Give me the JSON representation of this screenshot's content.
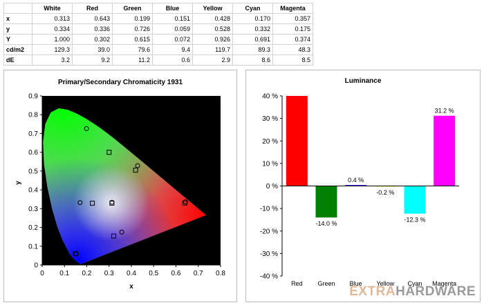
{
  "table": {
    "columns": [
      "White",
      "Red",
      "Green",
      "Blue",
      "Yellow",
      "Cyan",
      "Magenta"
    ],
    "rows": [
      {
        "label": "x",
        "values": [
          "0.313",
          "0.643",
          "0.199",
          "0.151",
          "0.428",
          "0.170",
          "0.357"
        ]
      },
      {
        "label": "y",
        "values": [
          "0.334",
          "0.336",
          "0.726",
          "0.059",
          "0.528",
          "0.332",
          "0.175"
        ]
      },
      {
        "label": "Y",
        "values": [
          "1.000",
          "0.302",
          "0.615",
          "0.072",
          "0.926",
          "0.691",
          "0.374"
        ]
      },
      {
        "label": "cd/m2",
        "values": [
          "129.3",
          "39.0",
          "79.6",
          "9.4",
          "119.7",
          "89.3",
          "48.3"
        ]
      },
      {
        "label": "dE",
        "values": [
          "3.2",
          "9.2",
          "11.2",
          "0.6",
          "2.9",
          "8.6",
          "8.5"
        ]
      }
    ]
  },
  "chart_data": [
    {
      "type": "scatter",
      "title": "Primary/Secondary Chromaticity 1931",
      "xlabel": "x",
      "ylabel": "y",
      "xlim": [
        0,
        0.8
      ],
      "ylim": [
        0,
        0.9
      ],
      "x_ticks": [
        "0",
        "0.1",
        "0.2",
        "0.3",
        "0.4",
        "0.5",
        "0.6",
        "0.7",
        "0.8"
      ],
      "y_ticks": [
        "0",
        "0.1",
        "0.2",
        "0.3",
        "0.4",
        "0.5",
        "0.6",
        "0.7",
        "0.8",
        "0.9"
      ],
      "background": "#000000",
      "series": [
        {
          "marker": "square",
          "points": [
            {
              "x": 0.64,
              "y": 0.33
            },
            {
              "x": 0.3,
              "y": 0.6
            },
            {
              "x": 0.15,
              "y": 0.06
            },
            {
              "x": 0.419,
              "y": 0.505
            },
            {
              "x": 0.225,
              "y": 0.329
            },
            {
              "x": 0.321,
              "y": 0.154
            },
            {
              "x": 0.3127,
              "y": 0.329
            }
          ]
        },
        {
          "marker": "circle",
          "points": [
            {
              "x": 0.643,
              "y": 0.336
            },
            {
              "x": 0.199,
              "y": 0.726
            },
            {
              "x": 0.151,
              "y": 0.059
            },
            {
              "x": 0.428,
              "y": 0.528
            },
            {
              "x": 0.17,
              "y": 0.332
            },
            {
              "x": 0.357,
              "y": 0.175
            },
            {
              "x": 0.313,
              "y": 0.334
            }
          ]
        }
      ]
    },
    {
      "type": "bar",
      "title": "Luminance",
      "categories": [
        "Red",
        "Green",
        "Blue",
        "Yellow",
        "Cyan",
        "Magenta"
      ],
      "values": [
        40.0,
        -14.0,
        0.4,
        -0.2,
        -12.3,
        31.2
      ],
      "data_labels": [
        "",
        "-14.0 %",
        "0.4 %",
        "-0.2 %",
        "-12.3 %",
        "31.2 %"
      ],
      "colors": [
        "#ff0000",
        "#008000",
        "#0000ff",
        "#ffff00",
        "#00ffff",
        "#ff00ff"
      ],
      "ylim": [
        -40,
        40
      ],
      "y_ticks": [
        "40 %",
        "30 %",
        "20 %",
        "10 %",
        "0 %",
        "-10 %",
        "-20 %",
        "-30 %",
        "-40 %"
      ]
    }
  ],
  "watermark": {
    "part1": "EXTRA",
    "part2": "HARDWARE",
    "color1": "#e0b89c",
    "color2": "#9a9a9a"
  }
}
